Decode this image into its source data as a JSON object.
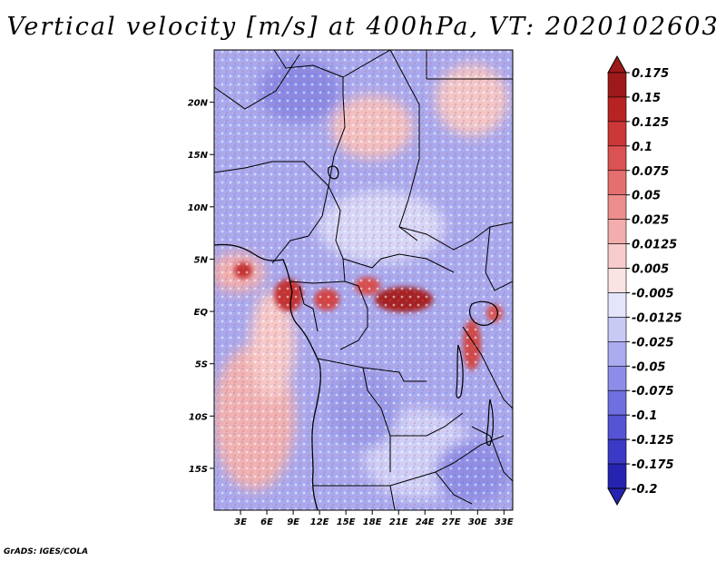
{
  "title": "Vertical velocity [m/s] at 400hPa, VT: 2020102603",
  "footer": "GrADS: IGES/COLA",
  "map": {
    "lat_range": [
      -19,
      25
    ],
    "lon_range": [
      0,
      34
    ],
    "lat_ticks": [
      {
        "value": 20,
        "label": "20N"
      },
      {
        "value": 15,
        "label": "15N"
      },
      {
        "value": 10,
        "label": "10N"
      },
      {
        "value": 5,
        "label": "5N"
      },
      {
        "value": 0,
        "label": "EQ"
      },
      {
        "value": -5,
        "label": "5S"
      },
      {
        "value": -10,
        "label": "10S"
      },
      {
        "value": -15,
        "label": "15S"
      }
    ],
    "lon_ticks": [
      {
        "value": 3,
        "label": "3E"
      },
      {
        "value": 6,
        "label": "6E"
      },
      {
        "value": 9,
        "label": "9E"
      },
      {
        "value": 12,
        "label": "12E"
      },
      {
        "value": 15,
        "label": "15E"
      },
      {
        "value": 18,
        "label": "18E"
      },
      {
        "value": 21,
        "label": "21E"
      },
      {
        "value": 24,
        "label": "24E"
      },
      {
        "value": 27,
        "label": "27E"
      },
      {
        "value": 30,
        "label": "30E"
      },
      {
        "value": 33,
        "label": "33E"
      }
    ]
  },
  "colorbar": {
    "levels": [
      {
        "label": "0.175",
        "color": "#9e1a1a"
      },
      {
        "label": "0.15",
        "color": "#b72323"
      },
      {
        "label": "0.125",
        "color": "#cc3737"
      },
      {
        "label": "0.1",
        "color": "#da5252"
      },
      {
        "label": "0.075",
        "color": "#e46f6f"
      },
      {
        "label": "0.05",
        "color": "#ec8e8e"
      },
      {
        "label": "0.025",
        "color": "#f3adad"
      },
      {
        "label": "0.0125",
        "color": "#f8cccc"
      },
      {
        "label": "0.005",
        "color": "#fbe3e3"
      },
      {
        "label": "-0.005",
        "color": "#ffffff"
      },
      {
        "label": "-0.0125",
        "color": "#e4e4fb"
      },
      {
        "label": "-0.025",
        "color": "#c9c9f6"
      },
      {
        "label": "-0.05",
        "color": "#ababf0"
      },
      {
        "label": "-0.075",
        "color": "#8d8de9"
      },
      {
        "label": "-0.1",
        "color": "#6f6fe0"
      },
      {
        "label": "-0.125",
        "color": "#5454d4"
      },
      {
        "label": "-0.175",
        "color": "#3a3ac6"
      },
      {
        "label": "-0.2",
        "color": "#2424b0"
      }
    ],
    "top_color": "#9e1a1a",
    "bottom_color": "#2424b0"
  }
}
